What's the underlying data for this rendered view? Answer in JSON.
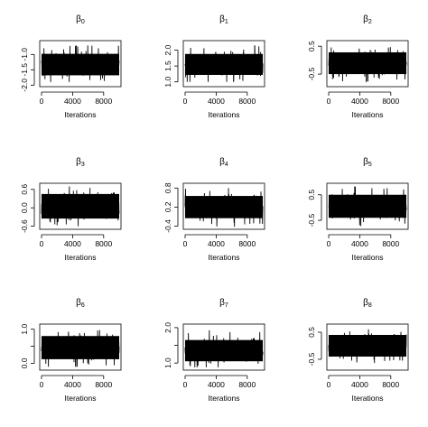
{
  "chart_data": [
    {
      "type": "line",
      "title_symbol": "β",
      "title_subscript": "0",
      "xlabel": "Iterations",
      "ylabel": "",
      "x_range": [
        0,
        10000
      ],
      "x_ticks": [
        0,
        4000,
        8000
      ],
      "x_tick_labels": [
        "0",
        "4000",
        "8000"
      ],
      "y_ticks": [
        -1.0,
        -1.5,
        -2.0
      ],
      "y_tick_labels": [
        "-1.0",
        "-1.5",
        "-2.0"
      ],
      "ylim": [
        -2.05,
        -0.55
      ],
      "series": [
        {
          "center": -1.32,
          "band_low": -1.68,
          "band_high": -0.98,
          "min": -1.9,
          "max": -0.7
        }
      ]
    },
    {
      "type": "line",
      "title_symbol": "β",
      "title_subscript": "1",
      "xlabel": "Iterations",
      "ylabel": "",
      "x_range": [
        0,
        10000
      ],
      "x_ticks": [
        0,
        4000,
        8000
      ],
      "x_tick_labels": [
        "0",
        "4000",
        "8000"
      ],
      "y_ticks": [
        1.0,
        1.5,
        2.0
      ],
      "y_tick_labels": [
        "1.0",
        "1.5",
        "2.0"
      ],
      "ylim": [
        0.85,
        2.3
      ],
      "series": [
        {
          "center": 1.55,
          "band_low": 1.22,
          "band_high": 1.88,
          "min": 1.0,
          "max": 2.15
        }
      ]
    },
    {
      "type": "line",
      "title_symbol": "β",
      "title_subscript": "2",
      "xlabel": "Iterations",
      "ylabel": "",
      "x_range": [
        0,
        10000
      ],
      "x_ticks": [
        0,
        4000,
        8000
      ],
      "x_tick_labels": [
        "0",
        "4000",
        "8000"
      ],
      "y_ticks": [
        0.5,
        -0.5
      ],
      "y_tick_labels": [
        "0.5",
        "-0.5"
      ],
      "ylim": [
        -0.95,
        0.7
      ],
      "series": [
        {
          "center": -0.12,
          "band_low": -0.5,
          "band_high": 0.28,
          "min": -0.8,
          "max": 0.55
        }
      ]
    },
    {
      "type": "line",
      "title_symbol": "β",
      "title_subscript": "3",
      "xlabel": "Iterations",
      "ylabel": "",
      "x_range": [
        0,
        10000
      ],
      "x_ticks": [
        0,
        4000,
        8000
      ],
      "x_tick_labels": [
        "0",
        "4000",
        "8000"
      ],
      "y_ticks": [
        0.6,
        0.0,
        -0.6
      ],
      "y_tick_labels": [
        "0.6",
        "0.0",
        "-0.6"
      ],
      "ylim": [
        -0.7,
        0.8
      ],
      "series": [
        {
          "center": 0.05,
          "band_low": -0.35,
          "band_high": 0.45,
          "min": -0.6,
          "max": 0.72
        }
      ]
    },
    {
      "type": "line",
      "title_symbol": "β",
      "title_subscript": "4",
      "xlabel": "Iterations",
      "ylabel": "",
      "x_range": [
        0,
        10000
      ],
      "x_ticks": [
        0,
        4000,
        8000
      ],
      "x_tick_labels": [
        "0",
        "4000",
        "8000"
      ],
      "y_ticks": [
        0.8,
        0.2,
        -0.4
      ],
      "y_tick_labels": [
        "0.8",
        "0.2",
        "-0.4"
      ],
      "ylim": [
        -0.5,
        0.95
      ],
      "series": [
        {
          "center": 0.2,
          "band_low": -0.15,
          "band_high": 0.55,
          "min": -0.42,
          "max": 0.85
        }
      ]
    },
    {
      "type": "line",
      "title_symbol": "β",
      "title_subscript": "5",
      "xlabel": "Iterations",
      "ylabel": "",
      "x_range": [
        0,
        10000
      ],
      "x_ticks": [
        0,
        4000,
        8000
      ],
      "x_tick_labels": [
        "0",
        "4000",
        "8000"
      ],
      "y_ticks": [
        0.5,
        -0.5
      ],
      "y_tick_labels": [
        "0.5",
        "-0.5"
      ],
      "ylim": [
        -0.85,
        0.95
      ],
      "series": [
        {
          "center": 0.05,
          "band_low": -0.4,
          "band_high": 0.5,
          "min": -0.72,
          "max": 0.85
        }
      ]
    },
    {
      "type": "line",
      "title_symbol": "β",
      "title_subscript": "6",
      "xlabel": "Iterations",
      "ylabel": "",
      "x_range": [
        0,
        10000
      ],
      "x_ticks": [
        0,
        4000,
        8000
      ],
      "x_tick_labels": [
        "0",
        "4000",
        "8000"
      ],
      "y_ticks": [
        1.0,
        0.5,
        0.0
      ],
      "y_tick_labels": [
        "1.0",
        "",
        "0.0"
      ],
      "ylim": [
        -0.2,
        1.15
      ],
      "series": [
        {
          "center": 0.45,
          "band_low": 0.12,
          "band_high": 0.8,
          "min": -0.1,
          "max": 1.05
        }
      ]
    },
    {
      "type": "line",
      "title_symbol": "β",
      "title_subscript": "7",
      "xlabel": "Iterations",
      "ylabel": "",
      "x_range": [
        0,
        10000
      ],
      "x_ticks": [
        0,
        4000,
        8000
      ],
      "x_tick_labels": [
        "0",
        "4000",
        "8000"
      ],
      "y_ticks": [
        2.0,
        1.5,
        1.0
      ],
      "y_tick_labels": [
        "2.0",
        "",
        "1.0"
      ],
      "ylim": [
        0.8,
        2.1
      ],
      "series": [
        {
          "center": 1.35,
          "band_low": 1.05,
          "band_high": 1.65,
          "min": 0.88,
          "max": 1.95
        }
      ]
    },
    {
      "type": "line",
      "title_symbol": "β",
      "title_subscript": "8",
      "xlabel": "Iterations",
      "ylabel": "",
      "x_range": [
        0,
        10000
      ],
      "x_ticks": [
        0,
        4000,
        8000
      ],
      "x_tick_labels": [
        "0",
        "4000",
        "8000"
      ],
      "y_ticks": [
        0.5,
        -0.5
      ],
      "y_tick_labels": [
        "0.5",
        "-0.5"
      ],
      "ylim": [
        -0.9,
        0.8
      ],
      "series": [
        {
          "center": 0.0,
          "band_low": -0.4,
          "band_high": 0.4,
          "min": -0.75,
          "max": 0.65
        }
      ]
    }
  ],
  "style": {
    "trace_color": "#000000",
    "axis_color": "#000000",
    "background": "#ffffff"
  }
}
